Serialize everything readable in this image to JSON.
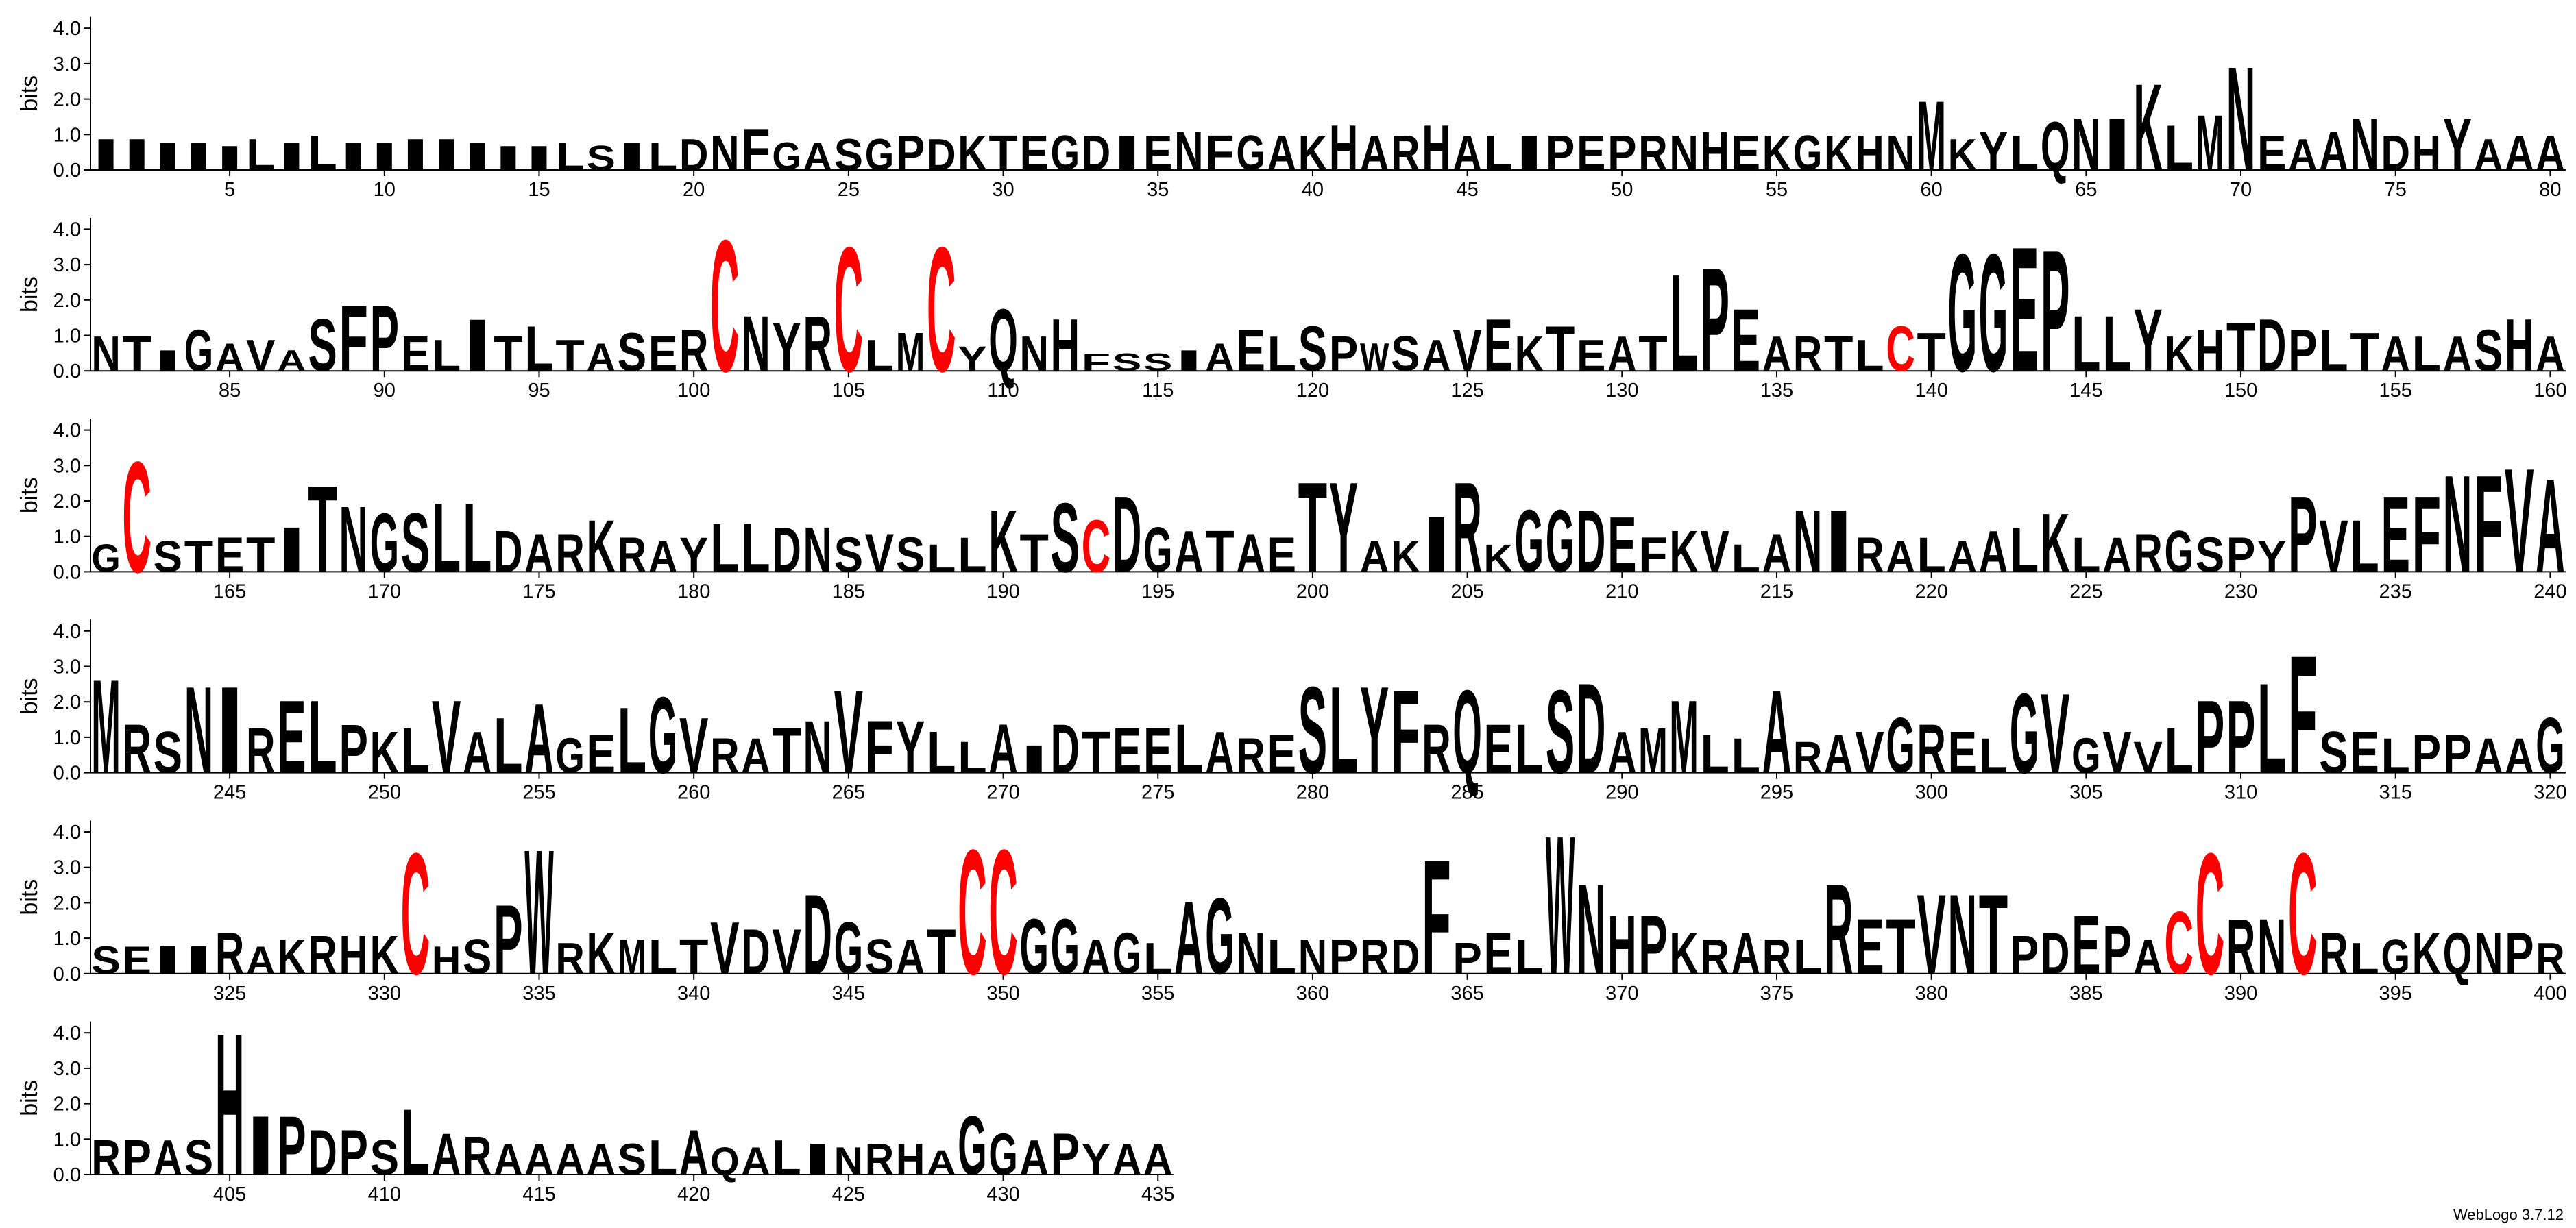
{
  "chart_data": {
    "type": "logo",
    "ylabel": "bits",
    "footer": "WebLogo 3.7.12",
    "ylim": [
      0,
      4.32
    ],
    "yticks": [
      {
        "value": 0,
        "label": "0.0"
      },
      {
        "value": 1,
        "label": "1.0"
      },
      {
        "value": 2,
        "label": "2.0"
      },
      {
        "value": 3,
        "label": "3.0"
      },
      {
        "value": 4,
        "label": "4.0"
      }
    ],
    "colors": {
      "C": "#ff0000"
    },
    "default_color": "#000000",
    "rows": [
      {
        "xlim": [
          0.5,
          80.5
        ],
        "xticks": [
          5,
          10,
          15,
          20,
          25,
          30,
          35,
          40,
          45,
          50,
          55,
          60,
          65,
          70,
          75,
          80
        ],
        "letters": [
          "I",
          "I",
          "I",
          "I",
          "I",
          "L",
          "I",
          "L",
          "I",
          "I",
          "I",
          "I",
          "I",
          "I",
          "I",
          "L",
          "S",
          "I",
          "L",
          "D",
          "N",
          "F",
          "G",
          "A",
          "S",
          "G",
          "P",
          "D",
          "K",
          "T",
          "E",
          "G",
          "D",
          "I",
          "E",
          "N",
          "F",
          "G",
          "A",
          "K",
          "H",
          "A",
          "R",
          "H",
          "A",
          "L",
          "I",
          "P",
          "E",
          "P",
          "R",
          "N",
          "H",
          "E",
          "K",
          "G",
          "K",
          "H",
          "N",
          "M",
          "K",
          "Y",
          "L",
          "Q",
          "N",
          "I",
          "K",
          "L",
          "M",
          "N",
          "E",
          "A",
          "A",
          "N",
          "D",
          "H",
          "Y",
          "A",
          "A",
          "A"
        ],
        "bits": [
          0.9,
          0.9,
          0.8,
          0.8,
          0.7,
          0.9,
          0.8,
          1.0,
          0.8,
          0.8,
          0.9,
          0.9,
          0.8,
          0.7,
          0.7,
          0.8,
          0.7,
          0.8,
          0.8,
          0.9,
          1.0,
          1.2,
          0.8,
          0.8,
          0.9,
          0.9,
          1.0,
          0.9,
          1.0,
          1.0,
          1.0,
          1.0,
          1.0,
          1.0,
          1.0,
          1.1,
          1.0,
          1.0,
          1.0,
          1.0,
          1.3,
          1.0,
          1.0,
          1.3,
          1.0,
          1.0,
          1.0,
          1.0,
          1.0,
          1.0,
          1.0,
          1.0,
          1.1,
          1.0,
          1.0,
          1.0,
          1.0,
          1.0,
          1.0,
          2.0,
          0.9,
          1.1,
          1.0,
          1.4,
          1.5,
          1.5,
          2.5,
          1.3,
          1.6,
          3.0,
          1.0,
          0.9,
          1.1,
          1.5,
          1.0,
          1.0,
          1.5,
          0.9,
          1.0,
          1.0
        ]
      },
      {
        "xlim": [
          80.5,
          160.5
        ],
        "xticks": [
          85,
          90,
          95,
          100,
          105,
          110,
          115,
          120,
          125,
          130,
          135,
          140,
          145,
          150,
          155,
          160
        ],
        "letters": [
          "N",
          "T",
          "I",
          "G",
          "A",
          "V",
          "A",
          "S",
          "F",
          "P",
          "E",
          "L",
          "I",
          "T",
          "L",
          "T",
          "A",
          "S",
          "E",
          "R",
          "C",
          "N",
          "Y",
          "R",
          "C",
          "L",
          "M",
          "C",
          "Y",
          "Q",
          "N",
          "H",
          "F",
          "S",
          "S",
          "I",
          "A",
          "E",
          "L",
          "S",
          "P",
          "W",
          "S",
          "A",
          "V",
          "E",
          "K",
          "T",
          "E",
          "A",
          "T",
          "L",
          "P",
          "E",
          "A",
          "R",
          "T",
          "L",
          "C",
          "T",
          "G",
          "G",
          "E",
          "P",
          "L",
          "L",
          "Y",
          "K",
          "H",
          "T",
          "D",
          "P",
          "L",
          "T",
          "A",
          "L",
          "A",
          "S",
          "H",
          "A"
        ],
        "bits": [
          1.0,
          1.0,
          0.6,
          1.2,
          0.8,
          0.9,
          0.6,
          1.5,
          1.9,
          1.9,
          1.0,
          0.9,
          1.5,
          1.0,
          1.3,
          0.9,
          0.8,
          1.1,
          1.0,
          1.2,
          3.8,
          1.6,
          1.4,
          1.6,
          3.6,
          0.9,
          1.1,
          3.6,
          0.7,
          1.8,
          1.0,
          1.5,
          0.5,
          0.5,
          0.5,
          0.6,
          0.8,
          1.2,
          1.0,
          1.3,
          1.0,
          0.8,
          1.0,
          0.9,
          1.2,
          1.5,
          1.0,
          1.3,
          0.9,
          1.0,
          1.0,
          2.8,
          3.0,
          1.8,
          1.0,
          1.0,
          1.0,
          0.9,
          1.3,
          1.1,
          3.4,
          3.4,
          3.6,
          3.5,
          1.6,
          1.6,
          1.8,
          1.0,
          1.2,
          1.4,
          1.5,
          1.2,
          1.2,
          1.1,
          1.0,
          1.0,
          1.0,
          1.2,
          1.5,
          1.0
        ]
      },
      {
        "xlim": [
          160.5,
          240.5
        ],
        "xticks": [
          165,
          170,
          175,
          180,
          185,
          190,
          195,
          200,
          205,
          210,
          215,
          220,
          225,
          230,
          235,
          240
        ],
        "letters": [
          "G",
          "C",
          "S",
          "T",
          "E",
          "T",
          "I",
          "T",
          "N",
          "G",
          "S",
          "L",
          "L",
          "D",
          "A",
          "R",
          "K",
          "R",
          "A",
          "Y",
          "L",
          "L",
          "D",
          "N",
          "S",
          "V",
          "S",
          "L",
          "L",
          "K",
          "T",
          "S",
          "C",
          "D",
          "G",
          "A",
          "T",
          "A",
          "E",
          "T",
          "Y",
          "A",
          "K",
          "I",
          "R",
          "K",
          "G",
          "G",
          "D",
          "E",
          "F",
          "K",
          "V",
          "L",
          "A",
          "N",
          "I",
          "R",
          "A",
          "L",
          "A",
          "A",
          "L",
          "K",
          "L",
          "A",
          "R",
          "G",
          "S",
          "P",
          "Y",
          "P",
          "V",
          "L",
          "E",
          "F",
          "N",
          "F",
          "V",
          "A"
        ],
        "bits": [
          0.8,
          3.2,
          0.9,
          0.9,
          1.0,
          1.0,
          1.3,
          2.5,
          1.9,
          1.7,
          1.7,
          2.0,
          2.0,
          1.2,
          1.1,
          1.1,
          1.5,
          1.0,
          0.9,
          1.0,
          1.4,
          1.4,
          1.3,
          1.3,
          1.0,
          1.1,
          1.0,
          0.8,
          1.0,
          1.8,
          1.1,
          2.0,
          1.5,
          2.2,
          1.3,
          1.2,
          1.2,
          1.1,
          1.0,
          2.6,
          2.6,
          0.9,
          0.9,
          1.6,
          2.6,
          0.8,
          1.8,
          1.8,
          1.8,
          1.6,
          1.0,
          1.2,
          1.2,
          0.8,
          1.1,
          1.8,
          1.8,
          1.0,
          0.9,
          1.0,
          0.9,
          1.2,
          1.3,
          1.7,
          1.0,
          1.0,
          1.1,
          1.2,
          1.0,
          1.0,
          0.9,
          2.2,
          1.5,
          1.5,
          2.2,
          2.2,
          2.8,
          2.8,
          3.0,
          2.7
        ]
      },
      {
        "xlim": [
          240.5,
          320.5
        ],
        "xticks": [
          245,
          250,
          255,
          260,
          265,
          270,
          275,
          280,
          285,
          290,
          295,
          300,
          305,
          310,
          315,
          320
        ],
        "letters": [
          "M",
          "R",
          "S",
          "N",
          "I",
          "R",
          "E",
          "L",
          "P",
          "K",
          "L",
          "V",
          "A",
          "L",
          "A",
          "G",
          "E",
          "L",
          "G",
          "V",
          "R",
          "A",
          "T",
          "N",
          "V",
          "F",
          "Y",
          "L",
          "L",
          "A",
          "I",
          "D",
          "T",
          "E",
          "E",
          "L",
          "A",
          "R",
          "E",
          "S",
          "L",
          "Y",
          "F",
          "R",
          "Q",
          "E",
          "L",
          "S",
          "D",
          "A",
          "M",
          "M",
          "L",
          "L",
          "A",
          "R",
          "A",
          "V",
          "G",
          "R",
          "E",
          "L",
          "G",
          "V",
          "G",
          "V",
          "V",
          "L",
          "P",
          "P",
          "L",
          "F",
          "S",
          "E",
          "L",
          "P",
          "P",
          "A",
          "A",
          "G"
        ],
        "bits": [
          2.7,
          1.4,
          1.2,
          2.5,
          2.5,
          1.3,
          2.1,
          2.1,
          1.4,
          1.2,
          1.3,
          2.1,
          1.2,
          1.6,
          2.0,
          1.0,
          1.1,
          1.9,
          2.2,
          1.6,
          1.0,
          1.0,
          1.3,
          1.5,
          2.4,
          1.5,
          1.5,
          1.2,
          0.9,
          1.4,
          0.8,
          1.4,
          1.2,
          1.3,
          1.3,
          1.4,
          1.2,
          1.0,
          1.1,
          2.5,
          2.5,
          2.5,
          2.4,
          1.4,
          2.4,
          1.4,
          1.4,
          2.4,
          2.6,
          1.2,
          1.3,
          2.1,
          1.1,
          1.0,
          2.4,
          0.9,
          1.1,
          1.2,
          1.6,
          1.4,
          1.2,
          1.0,
          2.3,
          2.3,
          1.0,
          1.2,
          0.9,
          1.3,
          2.1,
          2.1,
          2.6,
          3.4,
          1.2,
          1.2,
          1.0,
          1.1,
          1.1,
          1.0,
          1.0,
          1.6
        ]
      },
      {
        "xlim": [
          320.5,
          400.5
        ],
        "xticks": [
          325,
          330,
          335,
          340,
          345,
          350,
          355,
          360,
          365,
          370,
          375,
          380,
          385,
          390,
          395,
          400
        ],
        "letters": [
          "S",
          "E",
          "I",
          "I",
          "R",
          "A",
          "K",
          "R",
          "H",
          "K",
          "C",
          "H",
          "S",
          "P",
          "W",
          "R",
          "K",
          "M",
          "L",
          "T",
          "V",
          "D",
          "V",
          "D",
          "G",
          "S",
          "A",
          "T",
          "C",
          "C",
          "G",
          "G",
          "A",
          "G",
          "L",
          "A",
          "G",
          "N",
          "L",
          "N",
          "P",
          "R",
          "D",
          "F",
          "P",
          "E",
          "L",
          "W",
          "N",
          "H",
          "P",
          "K",
          "R",
          "A",
          "R",
          "L",
          "R",
          "E",
          "T",
          "V",
          "N",
          "T",
          "P",
          "D",
          "E",
          "P",
          "A",
          "C",
          "C",
          "R",
          "N",
          "C",
          "R",
          "L",
          "G",
          "K",
          "Q",
          "N",
          "P",
          "R"
        ],
        "bits": [
          0.8,
          0.8,
          0.8,
          0.8,
          1.2,
          0.8,
          1.0,
          1.1,
          1.1,
          1.1,
          3.5,
          0.8,
          1.0,
          2.0,
          3.6,
          0.9,
          1.2,
          1.0,
          1.0,
          1.0,
          1.5,
          1.3,
          1.3,
          2.3,
          1.5,
          1.0,
          1.0,
          1.3,
          3.6,
          3.6,
          1.6,
          1.6,
          1.0,
          1.2,
          0.9,
          2.1,
          2.2,
          1.2,
          1.0,
          1.0,
          1.0,
          1.0,
          1.0,
          3.3,
          0.9,
          1.2,
          1.0,
          4.0,
          2.6,
          1.7,
          1.7,
          1.2,
          1.0,
          1.2,
          1.0,
          1.0,
          2.6,
          1.6,
          1.6,
          2.3,
          2.3,
          2.3,
          1.1,
          1.2,
          1.7,
          1.4,
          1.0,
          1.8,
          3.5,
          1.6,
          1.6,
          3.5,
          1.2,
          0.9,
          1.0,
          1.2,
          1.2,
          1.2,
          1.2,
          0.9
        ]
      },
      {
        "xlim": [
          400.5,
          435.5
        ],
        "xticks": [
          405,
          410,
          415,
          420,
          425,
          430,
          435
        ],
        "letters": [
          "R",
          "P",
          "A",
          "S",
          "H",
          "I",
          "P",
          "D",
          "P",
          "S",
          "L",
          "A",
          "R",
          "A",
          "A",
          "A",
          "A",
          "S",
          "L",
          "A",
          "Q",
          "A",
          "L",
          "I",
          "N",
          "R",
          "H",
          "A",
          "G",
          "G",
          "A",
          "P",
          "Y",
          "A",
          "A"
        ],
        "bits": [
          1.0,
          1.0,
          1.0,
          1.0,
          4.1,
          1.7,
          1.7,
          1.3,
          1.3,
          1.0,
          1.9,
          1.2,
          1.1,
          0.9,
          0.9,
          0.9,
          0.9,
          0.9,
          1.0,
          1.3,
          0.8,
          0.8,
          1.0,
          0.9,
          0.8,
          0.9,
          0.9,
          0.7,
          1.7,
          1.2,
          1.0,
          1.2,
          0.9,
          0.9,
          0.9
        ]
      }
    ]
  }
}
